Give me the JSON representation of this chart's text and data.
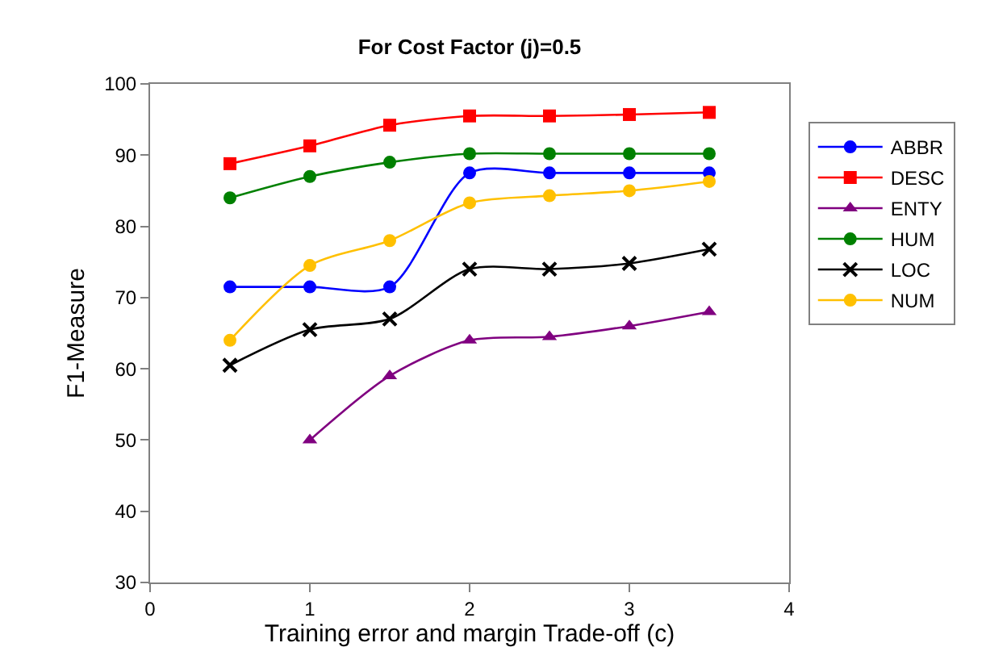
{
  "chart_data": {
    "type": "line",
    "title": "For Cost Factor (j)=0.5",
    "xlabel": "Training error and margin Trade-off (c)",
    "ylabel": "F1-Measure",
    "x": [
      0.5,
      1,
      1.5,
      2,
      2.5,
      3,
      3.5
    ],
    "xlim": [
      0,
      4
    ],
    "xticks": [
      0,
      1,
      2,
      3,
      4
    ],
    "ylim": [
      30,
      100
    ],
    "yticks": [
      30,
      40,
      50,
      60,
      70,
      80,
      90,
      100
    ],
    "grid": false,
    "legend": "right",
    "line_style": "solid",
    "series": [
      {
        "name": "ABBR",
        "color": "#0000ff",
        "marker": "circle",
        "values": [
          71.5,
          71.5,
          71.5,
          87.5,
          87.5,
          87.5,
          87.5
        ]
      },
      {
        "name": "DESC",
        "color": "#ff0000",
        "marker": "square",
        "values": [
          88.8,
          91.3,
          94.2,
          95.5,
          95.5,
          95.7,
          96
        ]
      },
      {
        "name": "ENTY",
        "color": "#800080",
        "marker": "triangle",
        "values": [
          null,
          50,
          59,
          64,
          64.5,
          66,
          68
        ]
      },
      {
        "name": "HUM",
        "color": "#008000",
        "marker": "circle",
        "values": [
          84,
          87,
          89,
          90.2,
          90.2,
          90.2,
          90.2
        ]
      },
      {
        "name": "LOC",
        "color": "#000000",
        "marker": "cross",
        "values": [
          60.5,
          65.5,
          67,
          74,
          74,
          74.8,
          76.8
        ]
      },
      {
        "name": "NUM",
        "color": "#ffc000",
        "marker": "circle",
        "values": [
          64,
          74.5,
          78,
          83.3,
          84.3,
          85,
          86.3
        ]
      }
    ]
  }
}
